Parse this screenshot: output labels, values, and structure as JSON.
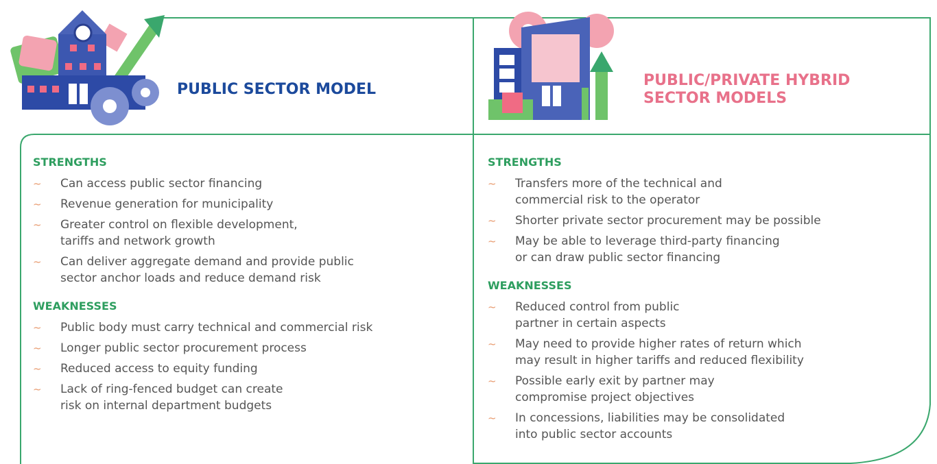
{
  "bullet": "~",
  "columns": [
    {
      "title": "PUBLIC SECTOR MODEL",
      "sections": [
        {
          "heading": "STRENGTHS",
          "items": [
            "Can access public sector financing",
            "Revenue generation for municipality",
            "Greater control on flexible development,\ntariffs and network growth",
            "Can deliver aggregate demand and provide public\nsector anchor loads and reduce demand risk"
          ]
        },
        {
          "heading": "WEAKNESSES",
          "items": [
            "Public body must carry technical and commercial risk",
            "Longer public sector procurement process",
            "Reduced access to equity funding",
            "Lack of ring-fenced budget can create\nrisk on internal department budgets"
          ]
        }
      ]
    },
    {
      "title": "PUBLIC/PRIVATE HYBRID\nSECTOR MODELS",
      "sections": [
        {
          "heading": "STRENGTHS",
          "items": [
            "Transfers more of the technical and\ncommercial risk to the operator",
            "Shorter private sector procurement may be possible",
            "May be able to leverage third-party financing\nor can draw public sector financing"
          ]
        },
        {
          "heading": "WEAKNESSES",
          "items": [
            "Reduced control from public\npartner in certain aspects",
            "May need to provide higher rates of return which\nmay result in higher tariffs and reduced flexibility",
            "Possible early exit by partner may\ncompromise project objectives",
            "In concessions, liabilities may be consolidated\ninto public sector accounts"
          ]
        }
      ]
    }
  ]
}
